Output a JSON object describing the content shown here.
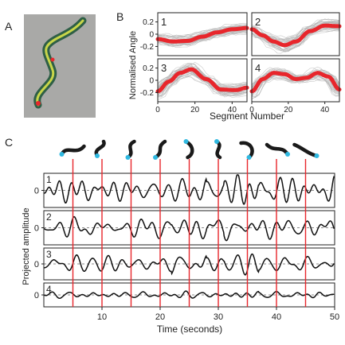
{
  "figure": {
    "panel_labels": {
      "A": "A",
      "B": "B",
      "C": "C"
    }
  },
  "chart_data": [
    {
      "type": "line",
      "panel": "B",
      "ylabel": "Normalised Angle",
      "xlabel": "Segment Number",
      "x_ticks": [
        0,
        20,
        40
      ],
      "y_ticks": [
        "0.2",
        "0",
        "-0.2"
      ],
      "xlim": [
        0,
        48
      ],
      "ylim": [
        -0.35,
        0.35
      ],
      "colors": {
        "mean": "#e8262c",
        "samples": "#b3b3b3"
      },
      "subplots": [
        {
          "label": "1",
          "mean": [
            [
              0,
              -0.08
            ],
            [
              8,
              -0.12
            ],
            [
              16,
              -0.11
            ],
            [
              24,
              -0.04
            ],
            [
              32,
              0.03
            ],
            [
              40,
              0.08
            ],
            [
              48,
              0.1
            ]
          ]
        },
        {
          "label": "2",
          "mean": [
            [
              0,
              0.08
            ],
            [
              6,
              -0.02
            ],
            [
              12,
              -0.12
            ],
            [
              18,
              -0.18
            ],
            [
              24,
              -0.12
            ],
            [
              32,
              0.05
            ],
            [
              40,
              0.14
            ],
            [
              48,
              0.13
            ]
          ]
        },
        {
          "label": "3",
          "mean": [
            [
              0,
              -0.18
            ],
            [
              6,
              -0.02
            ],
            [
              12,
              0.12
            ],
            [
              18,
              0.18
            ],
            [
              26,
              0.02
            ],
            [
              34,
              -0.15
            ],
            [
              42,
              -0.16
            ],
            [
              48,
              -0.12
            ]
          ]
        },
        {
          "label": "4",
          "mean": [
            [
              0,
              -0.18
            ],
            [
              6,
              0.02
            ],
            [
              12,
              0.12
            ],
            [
              18,
              0.1
            ],
            [
              24,
              0.02
            ],
            [
              30,
              0.04
            ],
            [
              36,
              0.12
            ],
            [
              42,
              0.06
            ],
            [
              48,
              -0.15
            ]
          ]
        }
      ]
    },
    {
      "type": "line",
      "panel": "C",
      "ylabel": "Projected amplitude",
      "xlabel": "Time (seconds)",
      "x_ticks": [
        10,
        20,
        30,
        40,
        50
      ],
      "xlim": [
        0,
        50
      ],
      "y_tick": "0",
      "event_lines_x": [
        5,
        10,
        15,
        20,
        25,
        30,
        35,
        40,
        45
      ],
      "colors": {
        "trace": "#111111",
        "events": "#e8262c",
        "marker": "#2fb8e0"
      },
      "rows": [
        {
          "label": "1",
          "amplitude": 1.0,
          "seed": 3
        },
        {
          "label": "2",
          "amplitude": 1.0,
          "seed": 7
        },
        {
          "label": "3",
          "amplitude": 0.9,
          "seed": 11
        },
        {
          "label": "4",
          "amplitude": 0.35,
          "seed": 19
        }
      ]
    }
  ]
}
